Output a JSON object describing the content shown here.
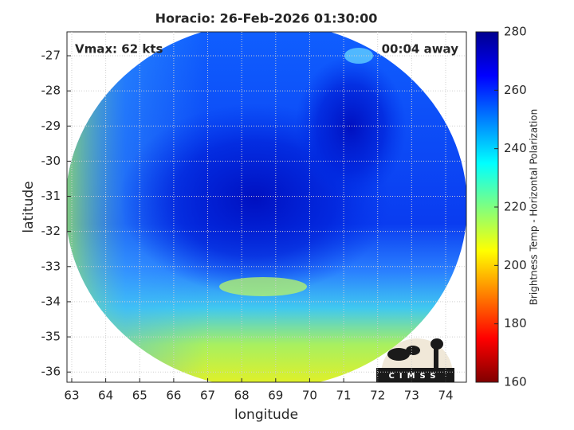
{
  "chart_data": {
    "type": "image",
    "title": "Horacio: 26-Feb-2026 01:30:00",
    "annotations": [
      "Vmax: 62 kts",
      "00:04 away"
    ],
    "xlabel": "longitude",
    "ylabel": "latitude",
    "xlim": [
      62.86,
      74.61
    ],
    "xticks": [
      63,
      64,
      65,
      66,
      67,
      68,
      69,
      70,
      71,
      72,
      73,
      74
    ],
    "ylim": [
      -36.29,
      -26.32
    ],
    "yticks": [
      -36,
      -35,
      -34,
      -33,
      -32,
      -31,
      -30,
      -29,
      -28,
      -27
    ],
    "grid": true,
    "colormap": "jet",
    "colorbar": {
      "label": "Brightness Temp - Horizontal Polarization",
      "lim": [
        160,
        280
      ],
      "ticks": [
        160,
        180,
        200,
        220,
        240,
        260,
        280
      ]
    },
    "logo": "CIMSS"
  }
}
